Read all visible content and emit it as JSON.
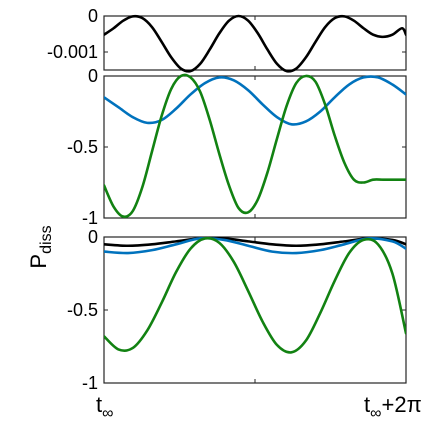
{
  "chart_data": [
    {
      "type": "line",
      "panel": "top",
      "ylim": [
        -0.0015,
        0.0
      ],
      "yticks": [
        0,
        -0.001
      ],
      "ytick_labels": [
        "0",
        "-0.001"
      ],
      "xlim": [
        0,
        6.2832
      ],
      "series": [
        {
          "color": "#000000",
          "x": [
            0.0,
            0.2,
            0.4,
            0.6,
            0.8,
            1.0,
            1.2,
            1.4,
            1.6,
            1.8,
            2.0,
            2.2,
            2.4,
            2.6,
            2.8,
            3.0,
            3.2,
            3.4,
            3.6,
            3.8,
            4.0,
            4.2,
            4.4,
            4.6,
            4.8,
            5.0,
            5.2,
            5.4,
            5.6,
            5.8,
            6.0,
            6.2,
            6.2832
          ],
          "values": [
            -0.00052,
            -0.00034,
            -0.00013,
            -1e-05,
            -6e-05,
            -0.00031,
            -0.00072,
            -0.00115,
            -0.00146,
            -0.00153,
            -0.00133,
            -0.00093,
            -0.00048,
            -0.00013,
            0.0,
            -0.00013,
            -0.00048,
            -0.00093,
            -0.00133,
            -0.00153,
            -0.00146,
            -0.00115,
            -0.00072,
            -0.00031,
            -6e-05,
            -1e-05,
            -0.00013,
            -0.00034,
            -0.00052,
            -0.00058,
            -0.00052,
            -0.00034,
            -0.00052
          ]
        }
      ]
    },
    {
      "type": "line",
      "panel": "middle",
      "ylim": [
        -1.0,
        0.0
      ],
      "yticks": [
        0,
        -0.5,
        -1
      ],
      "ytick_labels": [
        "0",
        "-0.5",
        "-1"
      ],
      "xlim": [
        0,
        6.2832
      ],
      "series": [
        {
          "color": "#0072BD",
          "x": [
            0.0,
            0.3,
            0.6,
            0.9,
            1.2,
            1.5,
            1.8,
            2.1,
            2.4,
            2.7,
            3.0,
            3.3,
            3.6,
            3.9,
            4.2,
            4.5,
            4.8,
            5.1,
            5.4,
            5.7,
            6.0,
            6.2832
          ],
          "values": [
            -0.15,
            -0.22,
            -0.29,
            -0.33,
            -0.31,
            -0.23,
            -0.13,
            -0.05,
            -0.01,
            -0.03,
            -0.1,
            -0.2,
            -0.29,
            -0.34,
            -0.32,
            -0.25,
            -0.15,
            -0.06,
            -0.01,
            -0.01,
            -0.06,
            -0.13
          ]
        },
        {
          "color": "#128212",
          "x": [
            0.0,
            0.2,
            0.4,
            0.6,
            0.8,
            1.0,
            1.2,
            1.4,
            1.6,
            1.8,
            2.0,
            2.2,
            2.4,
            2.6,
            2.8,
            3.0,
            3.2,
            3.4,
            3.6,
            3.8,
            4.0,
            4.2,
            4.4,
            4.6,
            4.8,
            5.0,
            5.2,
            5.4,
            5.6,
            5.8,
            6.0,
            6.2,
            6.2832
          ],
          "values": [
            -0.77,
            -0.92,
            -0.99,
            -0.95,
            -0.78,
            -0.53,
            -0.28,
            -0.09,
            0.0,
            -0.01,
            -0.11,
            -0.31,
            -0.55,
            -0.77,
            -0.93,
            -0.96,
            -0.87,
            -0.68,
            -0.44,
            -0.21,
            -0.05,
            0.0,
            -0.04,
            -0.2,
            -0.42,
            -0.61,
            -0.73,
            -0.75,
            -0.73,
            -0.73,
            -0.73,
            -0.73,
            -0.73
          ]
        }
      ]
    },
    {
      "type": "line",
      "panel": "bottom",
      "ylabel": "P",
      "ylabel_sub": "diss",
      "ylim": [
        -1.0,
        0.0
      ],
      "yticks": [
        0,
        -0.5,
        -1
      ],
      "ytick_labels": [
        "0",
        "-0.5",
        "-1"
      ],
      "xlim": [
        0,
        6.2832
      ],
      "xtick_labels": [
        "t",
        "t",
        "+2π"
      ],
      "xtick_sub": "∞",
      "series": [
        {
          "color": "#000000",
          "x": [
            0.0,
            0.5,
            1.0,
            1.5,
            2.0,
            2.5,
            3.0,
            3.5,
            4.0,
            4.5,
            5.0,
            5.5,
            6.0,
            6.2832
          ],
          "values": [
            -0.05,
            -0.06,
            -0.05,
            -0.03,
            -0.01,
            -0.01,
            -0.03,
            -0.05,
            -0.06,
            -0.05,
            -0.03,
            -0.01,
            -0.02,
            -0.05
          ]
        },
        {
          "color": "#0072BD",
          "x": [
            0.0,
            0.5,
            1.0,
            1.5,
            2.0,
            2.5,
            3.0,
            3.5,
            4.0,
            4.5,
            5.0,
            5.5,
            6.0,
            6.2832
          ],
          "values": [
            -0.1,
            -0.11,
            -0.09,
            -0.05,
            -0.01,
            -0.02,
            -0.06,
            -0.1,
            -0.11,
            -0.09,
            -0.05,
            -0.01,
            -0.03,
            -0.08
          ]
        },
        {
          "color": "#128212",
          "x": [
            0.0,
            0.3,
            0.6,
            0.9,
            1.2,
            1.5,
            1.8,
            2.1,
            2.4,
            2.7,
            3.0,
            3.3,
            3.6,
            3.9,
            4.2,
            4.5,
            4.8,
            5.1,
            5.4,
            5.7,
            6.0,
            6.2832
          ],
          "values": [
            -0.68,
            -0.77,
            -0.76,
            -0.64,
            -0.45,
            -0.24,
            -0.08,
            -0.01,
            -0.04,
            -0.17,
            -0.37,
            -0.58,
            -0.74,
            -0.79,
            -0.71,
            -0.52,
            -0.3,
            -0.11,
            -0.02,
            -0.05,
            -0.25,
            -0.66
          ]
        }
      ]
    }
  ]
}
